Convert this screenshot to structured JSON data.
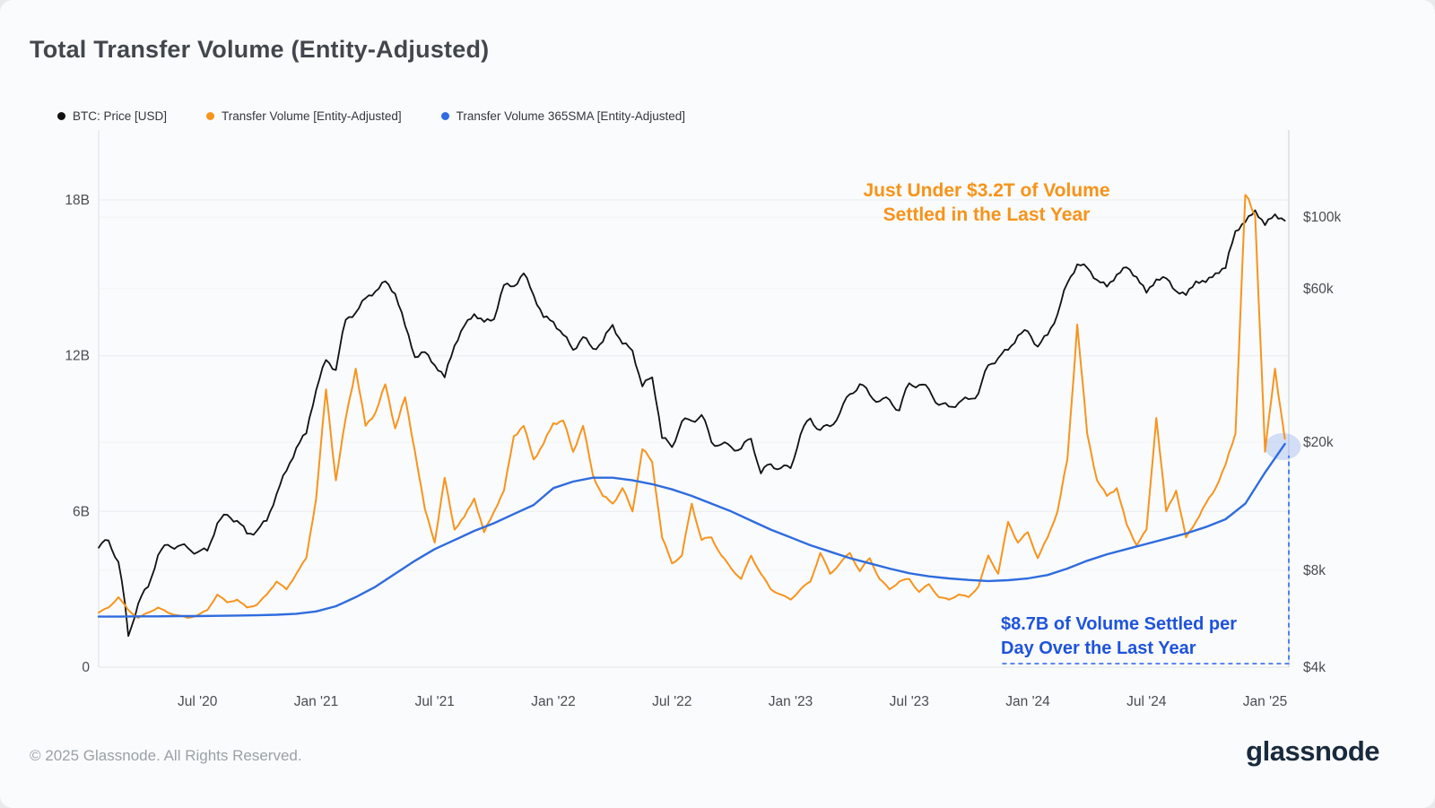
{
  "title": "Total Transfer Volume (Entity-Adjusted)",
  "legend": [
    {
      "label": "BTC: Price [USD]",
      "color": "#111111"
    },
    {
      "label": "Transfer Volume [Entity-Adjusted]",
      "color": "#f7941d"
    },
    {
      "label": "Transfer Volume 365SMA [Entity-Adjusted]",
      "color": "#2e6cdf"
    }
  ],
  "annotations": {
    "orange": {
      "line1": "Just Under $3.2T of Volume",
      "line2": "Settled in the Last Year",
      "color": "#f7931a"
    },
    "blue": {
      "line1": "$8.7B of Volume Settled per",
      "line2": "Day Over the Last Year",
      "color": "#1e53dd"
    }
  },
  "footer": {
    "copyright": "© 2025 Glassnode. All Rights Reserved.",
    "brand": "glassnode"
  },
  "chart_data": {
    "type": "line",
    "title": "Total Transfer Volume (Entity-Adjusted)",
    "x_unit": "months since Feb 2020",
    "x_domain": [
      0,
      60.2
    ],
    "x_ticks": [
      {
        "t": 5,
        "label": "Jul '20"
      },
      {
        "t": 11,
        "label": "Jan '21"
      },
      {
        "t": 17,
        "label": "Jul '21"
      },
      {
        "t": 23,
        "label": "Jan '22"
      },
      {
        "t": 29,
        "label": "Jul '22"
      },
      {
        "t": 35,
        "label": "Jan '23"
      },
      {
        "t": 41,
        "label": "Jul '23"
      },
      {
        "t": 47,
        "label": "Jan '24"
      },
      {
        "t": 53,
        "label": "Jul '24"
      },
      {
        "t": 59,
        "label": "Jan '25"
      }
    ],
    "left_axis": {
      "title": "Transfer Volume (Entity-Adjusted), USD billions per day",
      "scale": "linear",
      "range": [
        0,
        20.7
      ],
      "ticks": [
        {
          "value": 0,
          "label": "0"
        },
        {
          "value": 6,
          "label": "6B"
        },
        {
          "value": 12,
          "label": "12B"
        },
        {
          "value": 18,
          "label": "18B"
        }
      ]
    },
    "right_axis": {
      "title": "BTC Price, USD",
      "scale": "log",
      "range": [
        4000,
        115000
      ],
      "ticks": [
        {
          "value": 100000,
          "label": "$100k"
        },
        {
          "value": 60000,
          "label": "$60k"
        },
        {
          "value": 20000,
          "label": "$20k"
        },
        {
          "value": 8000,
          "label": "$8k"
        },
        {
          "value": 4000,
          "label": "$4k"
        }
      ]
    },
    "grid": true,
    "legend_position": "top-left",
    "series": [
      {
        "id": "btc-price",
        "name": "BTC: Price [USD]",
        "axis": "right",
        "color": "#111111",
        "unit": "USD (thousands)",
        "value_scale": 1000,
        "step_months": 0.5,
        "values": [
          9.4,
          9.9,
          8.5,
          5.0,
          6.3,
          7.1,
          8.9,
          9.6,
          9.5,
          9.4,
          9.1,
          9.2,
          11.2,
          11.9,
          11.4,
          10.4,
          10.6,
          11.4,
          13.8,
          16.3,
          19.2,
          21.3,
          29.0,
          36.0,
          33.5,
          48.0,
          50.5,
          56.0,
          58.8,
          63.2,
          57.8,
          46.0,
          36.7,
          38.1,
          34.7,
          31.8,
          39.9,
          46.0,
          50.0,
          47.3,
          48.2,
          61.5,
          61.0,
          66.9,
          57.2,
          48.9,
          47.3,
          43.1,
          38.7,
          42.4,
          39.0,
          41.0,
          46.3,
          40.4,
          38.5,
          29.8,
          31.8,
          20.6,
          19.3,
          23.2,
          23.3,
          24.3,
          20.0,
          19.7,
          19.3,
          19.1,
          20.5,
          16.0,
          17.1,
          16.6,
          16.6,
          21.1,
          23.7,
          21.8,
          22.4,
          24.7,
          28.2,
          30.3,
          28.1,
          26.8,
          27.1,
          25.1,
          30.5,
          30.1,
          29.2,
          26.1,
          25.8,
          26.5,
          27.2,
          28.3,
          34.7,
          36.5,
          38.7,
          42.9,
          44.2,
          39.6,
          43.1,
          49.9,
          62.4,
          71.4,
          69.6,
          63.8,
          60.8,
          66.3,
          69.8,
          65.2,
          58.2,
          64.1,
          64.6,
          58.9,
          57.3,
          63.2,
          62.8,
          67.0,
          69.5,
          90.5,
          96.5,
          105.0,
          94.4,
          102.1,
          97.5
        ]
      },
      {
        "id": "transfer-volume",
        "name": "Transfer Volume [Entity-Adjusted]",
        "axis": "left",
        "color": "#f7941d",
        "unit": "USD billions",
        "value_scale": 1,
        "step_months": 0.5,
        "values": [
          2.1,
          2.3,
          2.7,
          2.2,
          1.9,
          2.1,
          2.3,
          2.1,
          2.0,
          1.9,
          2.0,
          2.2,
          2.8,
          2.5,
          2.6,
          2.3,
          2.4,
          2.8,
          3.3,
          3.0,
          3.6,
          4.2,
          6.5,
          10.7,
          7.2,
          9.6,
          11.5,
          9.3,
          9.8,
          10.9,
          9.2,
          10.4,
          8.3,
          6.1,
          4.8,
          7.3,
          5.3,
          5.8,
          6.5,
          5.2,
          6.0,
          6.8,
          8.9,
          9.3,
          8.0,
          8.6,
          9.4,
          9.5,
          8.3,
          9.3,
          7.4,
          6.6,
          6.3,
          6.9,
          6.0,
          8.4,
          7.9,
          5.0,
          4.0,
          4.3,
          6.3,
          4.9,
          5.0,
          4.3,
          3.8,
          3.4,
          4.3,
          3.6,
          3.0,
          2.8,
          2.6,
          3.0,
          3.3,
          4.4,
          3.6,
          4.0,
          4.4,
          3.7,
          4.2,
          3.4,
          3.0,
          3.3,
          3.4,
          2.9,
          3.2,
          2.7,
          2.6,
          2.8,
          2.7,
          3.1,
          4.3,
          3.6,
          5.6,
          4.8,
          5.2,
          4.2,
          5.0,
          6.0,
          8.0,
          13.2,
          9.0,
          7.2,
          6.6,
          6.9,
          5.5,
          4.7,
          5.3,
          9.6,
          6.0,
          6.8,
          5.0,
          5.6,
          6.3,
          6.9,
          7.8,
          9.0,
          18.2,
          17.4,
          8.3,
          11.5,
          8.8
        ]
      },
      {
        "id": "transfer-volume-365sma",
        "name": "Transfer Volume 365SMA [Entity-Adjusted]",
        "axis": "left",
        "color": "#2e6cdf",
        "unit": "USD billions",
        "value_scale": 1,
        "step_months": 1,
        "values": [
          1.95,
          1.95,
          1.96,
          1.96,
          1.97,
          1.97,
          1.98,
          1.99,
          2.0,
          2.02,
          2.06,
          2.15,
          2.35,
          2.7,
          3.1,
          3.6,
          4.1,
          4.55,
          4.9,
          5.25,
          5.55,
          5.9,
          6.25,
          6.9,
          7.15,
          7.3,
          7.3,
          7.2,
          7.05,
          6.85,
          6.6,
          6.3,
          6.0,
          5.65,
          5.3,
          5.0,
          4.7,
          4.45,
          4.2,
          4.0,
          3.8,
          3.62,
          3.5,
          3.42,
          3.36,
          3.32,
          3.35,
          3.42,
          3.55,
          3.8,
          4.1,
          4.35,
          4.55,
          4.75,
          4.95,
          5.15,
          5.4,
          5.7,
          6.3,
          7.5,
          8.6
        ]
      }
    ],
    "highlight": {
      "circle": {
        "t": 59.9,
        "value_b": 8.5,
        "color": "#7fa0ea"
      },
      "bracket": {
        "t_start": 45.7,
        "color": "#2563eb"
      }
    }
  }
}
